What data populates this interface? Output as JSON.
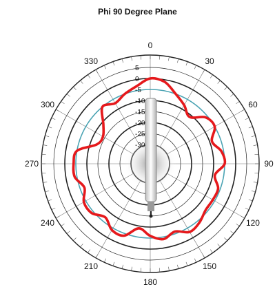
{
  "chart_data": {
    "type": "line",
    "subtype": "polar",
    "title": "Phi 90 Degree Plane",
    "angle_direction": "clockwise",
    "zero_angle_position": "top",
    "angle_ticks": [
      0,
      30,
      60,
      90,
      120,
      150,
      180,
      210,
      240,
      270,
      300,
      330
    ],
    "angle_tick_labels": [
      "0",
      "30",
      "60",
      "90",
      "120",
      "150",
      "180",
      "210",
      "240",
      "270",
      "300",
      "330"
    ],
    "radial_ticks": [
      5,
      0,
      -5,
      -10,
      -15,
      -20,
      -25,
      -30
    ],
    "radial_tick_labels": [
      "5",
      "0",
      "-5",
      "-10",
      "-15",
      "-20",
      "-25",
      "-30"
    ],
    "rlim": [
      -35,
      5
    ],
    "grid": true,
    "colors": {
      "pattern": "#e5191c",
      "reference": "#4aa3b3",
      "grid": "#222222"
    },
    "reference_level": -5,
    "series": [
      {
        "angles": [
          0,
          10,
          20,
          30,
          40,
          50,
          60,
          70,
          80,
          90,
          100,
          110,
          120,
          130,
          140,
          150,
          160,
          170,
          180,
          190,
          200,
          210,
          220,
          230,
          240,
          250,
          260,
          270,
          280,
          290,
          300,
          310,
          320,
          330,
          340,
          350
        ],
        "values": [
          0,
          -1,
          -5,
          -8,
          -11,
          -6,
          -5,
          -9,
          -6,
          -5,
          -9,
          -6,
          -6,
          -6,
          -4,
          -3,
          -6,
          -4,
          -6,
          -9,
          -4,
          -4,
          -7,
          -4,
          -4,
          -7,
          -4,
          -4,
          -5,
          -13,
          -14,
          -11,
          -5,
          -7,
          -5,
          -3
        ]
      }
    ]
  }
}
